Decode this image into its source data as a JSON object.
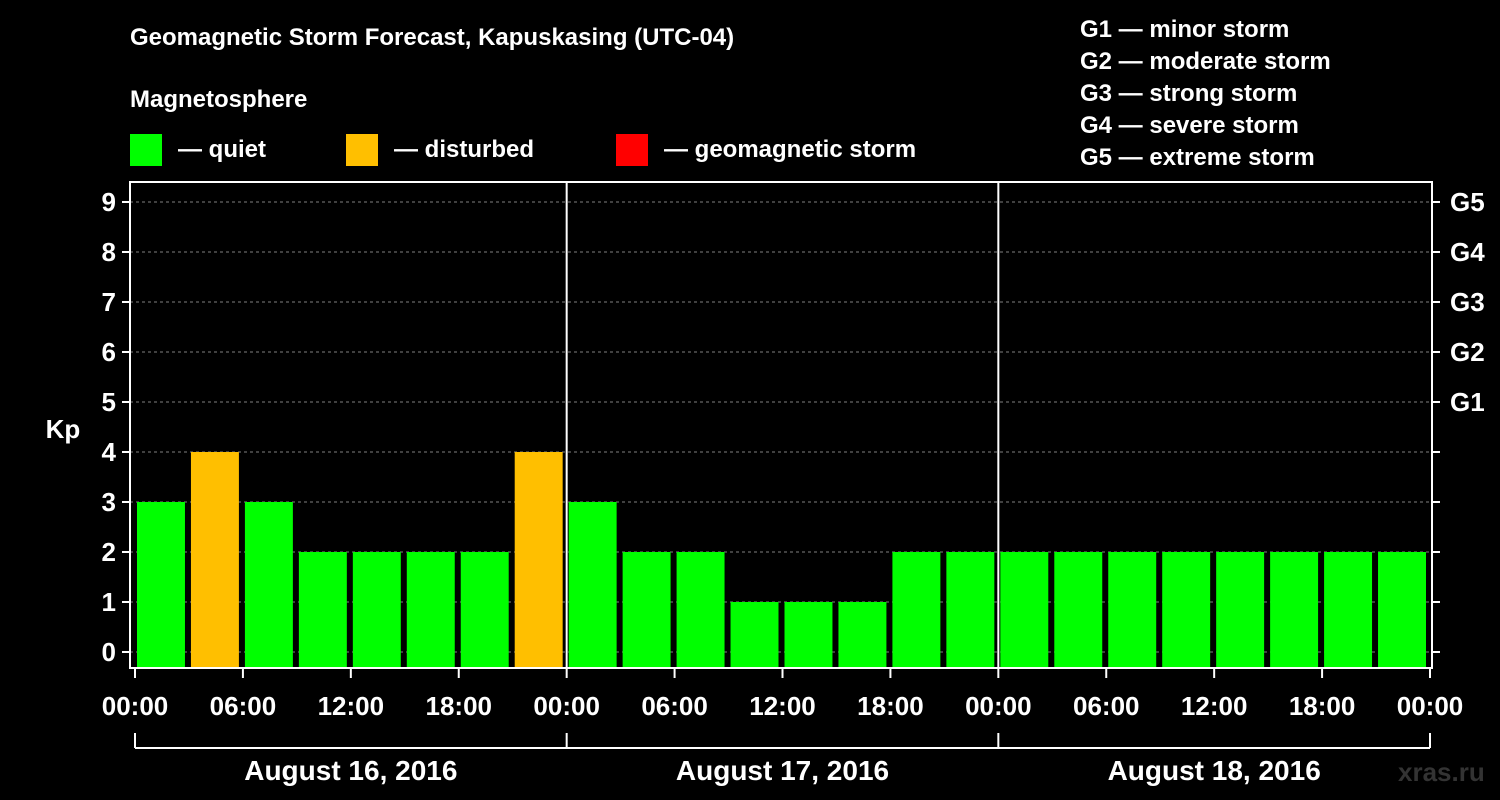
{
  "title": "Geomagnetic Storm Forecast, Kapuskasing (UTC-04)",
  "magnetosphere_label": "Magnetosphere",
  "legend": [
    {
      "label": "— quiet",
      "color": "#00ff00"
    },
    {
      "label": "— disturbed",
      "color": "#ffbf00"
    },
    {
      "label": "— geomagnetic storm",
      "color": "#ff0000"
    }
  ],
  "g_scale": [
    "G1 — minor storm",
    "G2 — moderate storm",
    "G3 — strong storm",
    "G4 — severe storm",
    "G5 — extreme storm"
  ],
  "watermark": "xras.ru",
  "chart_data": {
    "type": "bar",
    "ylabel": "Kp",
    "ylim": [
      0,
      9
    ],
    "y_ticks": [
      "0",
      "1",
      "2",
      "3",
      "4",
      "5",
      "6",
      "7",
      "8",
      "9"
    ],
    "right_axis_labels": [
      {
        "kp": 5,
        "label": "G1"
      },
      {
        "kp": 6,
        "label": "G2"
      },
      {
        "kp": 7,
        "label": "G3"
      },
      {
        "kp": 8,
        "label": "G4"
      },
      {
        "kp": 9,
        "label": "G5"
      }
    ],
    "x_tick_labels": [
      "00:00",
      "06:00",
      "12:00",
      "18:00",
      "00:00",
      "06:00",
      "12:00",
      "18:00",
      "00:00",
      "06:00",
      "12:00",
      "18:00",
      "00:00"
    ],
    "days": [
      "August 16, 2016",
      "August 17, 2016",
      "August 18, 2016"
    ],
    "bar_interval_hours": 3,
    "first_bar_start_hour": 0,
    "grid": "dashed horizontal at each Kp",
    "values": [
      3,
      4,
      3,
      2,
      2,
      2,
      2,
      4,
      3,
      2,
      2,
      1,
      1,
      1,
      2,
      2,
      2,
      2,
      2,
      2,
      2,
      2,
      2,
      2
    ],
    "status": [
      "quiet",
      "disturbed",
      "quiet",
      "quiet",
      "quiet",
      "quiet",
      "quiet",
      "disturbed",
      "quiet",
      "quiet",
      "quiet",
      "quiet",
      "quiet",
      "quiet",
      "quiet",
      "quiet",
      "quiet",
      "quiet",
      "quiet",
      "quiet",
      "quiet",
      "quiet",
      "quiet",
      "quiet"
    ],
    "status_colors": {
      "quiet": "#00ff00",
      "disturbed": "#ffbf00",
      "storm": "#ff0000"
    }
  }
}
